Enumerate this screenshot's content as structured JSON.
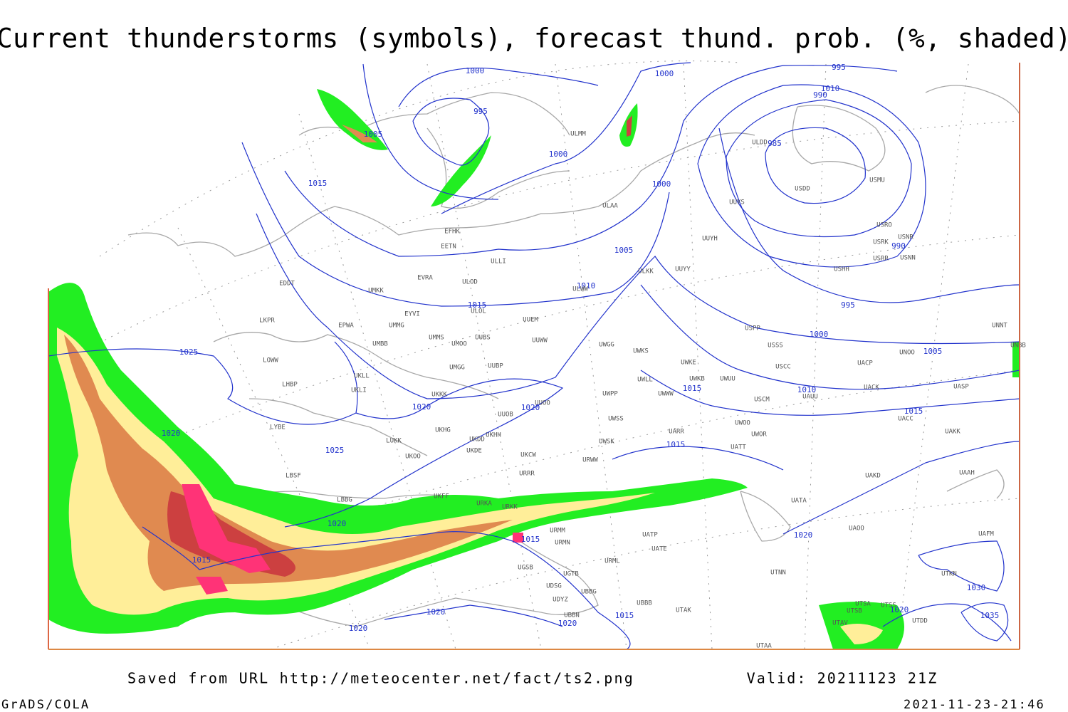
{
  "title": "Current thunderstorms (symbols), forecast thund. prob. (%, shaded)",
  "footer": {
    "source": "Saved from URL http://meteocenter.net/fact/ts2.png",
    "valid": "Valid: 20211123 21Z",
    "software": "GrADS/COLA",
    "timestamp": "2021-11-23-21:46"
  },
  "map": {
    "isobar_labels": [
      "1000",
      "1000",
      "995",
      "990",
      "995",
      "1005",
      "985",
      "1000",
      "1015",
      "1000",
      "990",
      "1005",
      "1010",
      "1015",
      "995",
      "1000",
      "1005",
      "1025",
      "1010",
      "1015",
      "1020",
      "1020",
      "1015",
      "1020",
      "1025",
      "1015",
      "1020",
      "1015",
      "1020",
      "1015",
      "1030",
      "1020",
      "1020",
      "1015",
      "1020",
      "1035",
      "1020",
      "1010"
    ],
    "stations": [
      "ULMM",
      "ULDD",
      "USDD",
      "USMU",
      "ULAA",
      "UUYS",
      "EFHK",
      "EETN",
      "UUYH",
      "USRO",
      "USRK",
      "USNR",
      "USNN",
      "USRR",
      "USHH",
      "ULLI",
      "ULKK",
      "UUYY",
      "EVRA",
      "ULOD",
      "ULWW",
      "EDDT",
      "UMKK",
      "EYVI",
      "ULOL",
      "UUEM",
      "EPWA",
      "UMMG",
      "LKPR",
      "UMMS",
      "UMOO",
      "UUBS",
      "UUWW",
      "UWGG",
      "UWKS",
      "USPP",
      "USSS",
      "UNOO",
      "UNNT",
      "UNBB",
      "UMBB",
      "LOWW",
      "UUBP",
      "UMGG",
      "UWKE",
      "UWKB",
      "UWUU",
      "USCC",
      "UACP",
      "UKLL",
      "UKLI",
      "LHBP",
      "UWLL",
      "UWWW",
      "USCM",
      "UAUU",
      "UACK",
      "UASP",
      "UKKK",
      "UUOO",
      "UWPP",
      "UUOB",
      "UACC",
      "UAKK",
      "LYBE",
      "UWSS",
      "UARR",
      "UWOO",
      "UWOR",
      "UKHG",
      "UKDD",
      "UKHH",
      "LUKK",
      "UKDE",
      "UWSK",
      "UATT",
      "UKOO",
      "UKCW",
      "URWW",
      "LBSF",
      "URRR",
      "UAKD",
      "UAAH",
      "UKFF",
      "LBBG",
      "URKA",
      "URKK",
      "UATA",
      "UAOO",
      "UATP",
      "URMM",
      "URMN",
      "UATE",
      "UAFM",
      "URML",
      "UGSB",
      "UGTB",
      "UTNN",
      "UTKN",
      "UDSG",
      "UDYZ",
      "UBBG",
      "UBBB",
      "UTAK",
      "UTSB",
      "UTSS",
      "UTDD",
      "UBBN",
      "UTAV",
      "UTAA",
      "UTSA"
    ]
  }
}
